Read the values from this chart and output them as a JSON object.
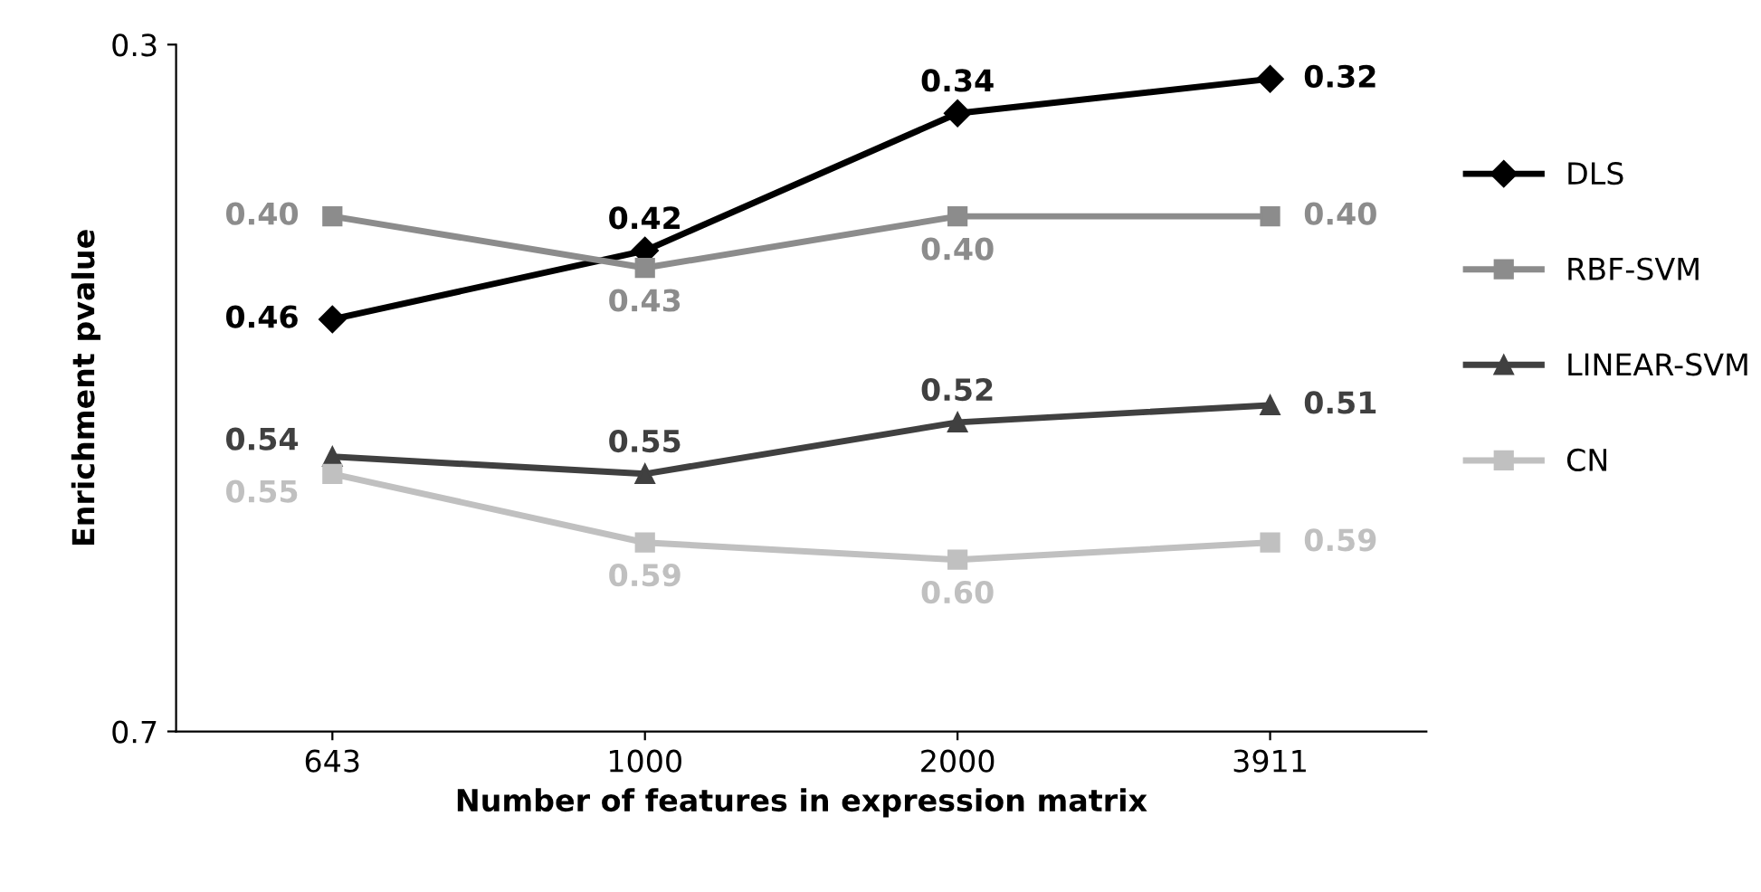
{
  "chart_data": {
    "type": "line",
    "xlabel": "Number of features in expression matrix",
    "ylabel": "Enrichment pvalue",
    "categories": [
      "643",
      "1000",
      "2000",
      "3911"
    ],
    "series": [
      {
        "name": "DLS",
        "color": "#000000",
        "marker": "diamond",
        "values": [
          0.46,
          0.42,
          0.34,
          0.32
        ],
        "value_labels": [
          "0.46",
          "0.42",
          "0.34",
          "0.32"
        ]
      },
      {
        "name": "RBF-SVM",
        "color": "#8c8c8c",
        "marker": "square",
        "values": [
          0.4,
          0.43,
          0.4,
          0.4
        ],
        "value_labels": [
          "0.40",
          "0.43",
          "0.40",
          "0.40"
        ]
      },
      {
        "name": "LINEAR-SVM",
        "color": "#404040",
        "marker": "triangle",
        "values": [
          0.54,
          0.55,
          0.52,
          0.51
        ],
        "value_labels": [
          "0.54",
          "0.55",
          "0.52",
          "0.51"
        ]
      },
      {
        "name": "CN",
        "color": "#c0c0c0",
        "marker": "square",
        "values": [
          0.55,
          0.59,
          0.6,
          0.59
        ],
        "value_labels": [
          "0.55",
          "0.59",
          "0.60",
          "0.59"
        ]
      }
    ],
    "ylim": [
      0.7,
      0.3
    ],
    "yticks": [
      0.3,
      0.7
    ],
    "grid": false,
    "legend": "right"
  }
}
